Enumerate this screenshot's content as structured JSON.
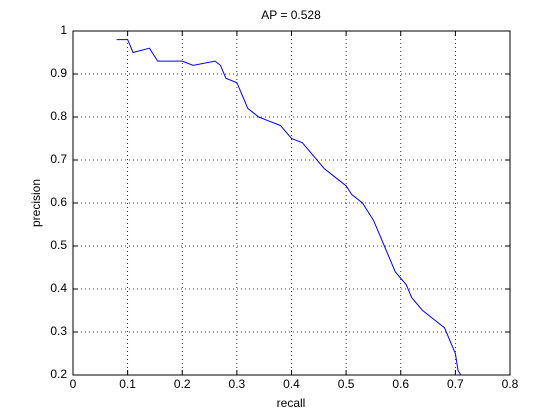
{
  "chart_data": {
    "type": "line",
    "title": "AP = 0.528",
    "x_label": "recall",
    "y_label": "precision",
    "x": [
      0.08,
      0.1,
      0.11,
      0.14,
      0.155,
      0.2,
      0.22,
      0.26,
      0.27,
      0.28,
      0.3,
      0.31,
      0.32,
      0.34,
      0.36,
      0.38,
      0.4,
      0.42,
      0.44,
      0.46,
      0.48,
      0.5,
      0.51,
      0.53,
      0.55,
      0.56,
      0.57,
      0.58,
      0.59,
      0.61,
      0.62,
      0.64,
      0.66,
      0.68,
      0.69,
      0.7,
      0.705,
      0.71
    ],
    "values": [
      0.98,
      0.98,
      0.95,
      0.96,
      0.93,
      0.93,
      0.92,
      0.93,
      0.92,
      0.89,
      0.88,
      0.85,
      0.82,
      0.8,
      0.79,
      0.78,
      0.75,
      0.74,
      0.71,
      0.68,
      0.66,
      0.64,
      0.62,
      0.6,
      0.56,
      0.53,
      0.5,
      0.47,
      0.44,
      0.41,
      0.38,
      0.35,
      0.33,
      0.31,
      0.28,
      0.25,
      0.21,
      0.2
    ],
    "color": "#0000ff",
    "xlim": [
      0,
      0.8
    ],
    "xticks": [
      0,
      0.1,
      0.2,
      0.3,
      0.4,
      0.5,
      0.6,
      0.7,
      0.8
    ],
    "ylim": [
      0.2,
      1
    ],
    "yticks": [
      0.2,
      0.3,
      0.4,
      0.5,
      0.6,
      0.7,
      0.8,
      0.9,
      1
    ],
    "grid": true
  }
}
